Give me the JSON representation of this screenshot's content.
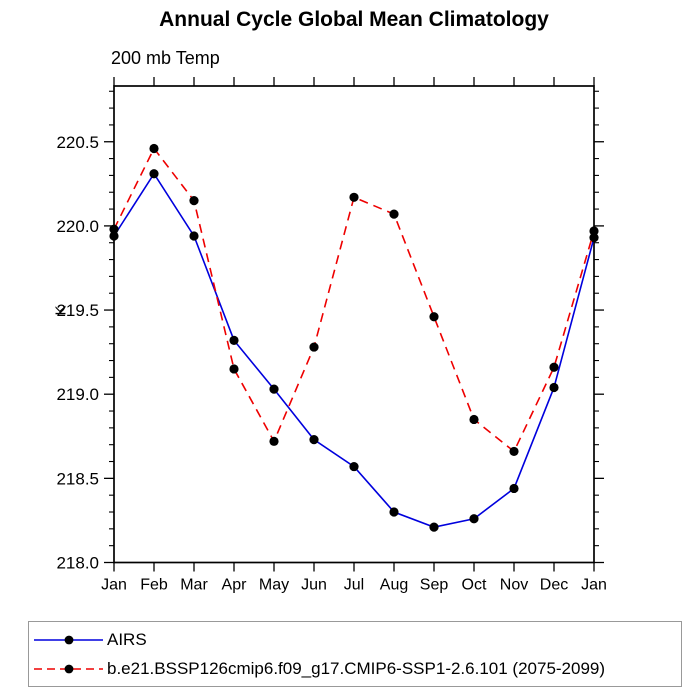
{
  "chart": {
    "title": "Annual Cycle Global Mean Climatology",
    "subtitle": "200 mb Temp",
    "ylabel": "K"
  },
  "chart_data": {
    "type": "line",
    "title": "Annual Cycle Global Mean Climatology",
    "subtitle": "200 mb Temp",
    "xlabel": "",
    "ylabel": "K",
    "categories": [
      "Jan",
      "Feb",
      "Mar",
      "Apr",
      "May",
      "Jun",
      "Jul",
      "Aug",
      "Sep",
      "Oct",
      "Nov",
      "Dec",
      "Jan"
    ],
    "y_ticks": [
      218.0,
      218.5,
      219.0,
      219.5,
      220.0,
      220.5
    ],
    "y_minor_step": 0.1,
    "ylim": [
      217.99,
      220.83
    ],
    "grid": false,
    "legend_position": "bottom-left-box",
    "axis_color": "#000000",
    "marker": "filled-circle",
    "marker_color": "#000000",
    "series": [
      {
        "name": "AIRS",
        "color": "#0000dd",
        "line_style": "solid",
        "marker": "circle",
        "marker_color": "#000000",
        "values": [
          219.94,
          220.31,
          219.94,
          219.32,
          219.03,
          218.73,
          218.57,
          218.3,
          218.21,
          218.26,
          218.44,
          219.04,
          219.93
        ]
      },
      {
        "name": "b.e21.BSSP126cmip6.f09_g17.CMIP6-SSP1-2.6.101 (2075-2099)",
        "color": "#ee0000",
        "line_style": "dashed",
        "marker": "circle",
        "marker_color": "#000000",
        "values": [
          219.98,
          220.46,
          220.15,
          219.15,
          218.72,
          219.28,
          220.17,
          220.07,
          219.46,
          218.85,
          218.66,
          219.16,
          219.97
        ]
      }
    ]
  }
}
